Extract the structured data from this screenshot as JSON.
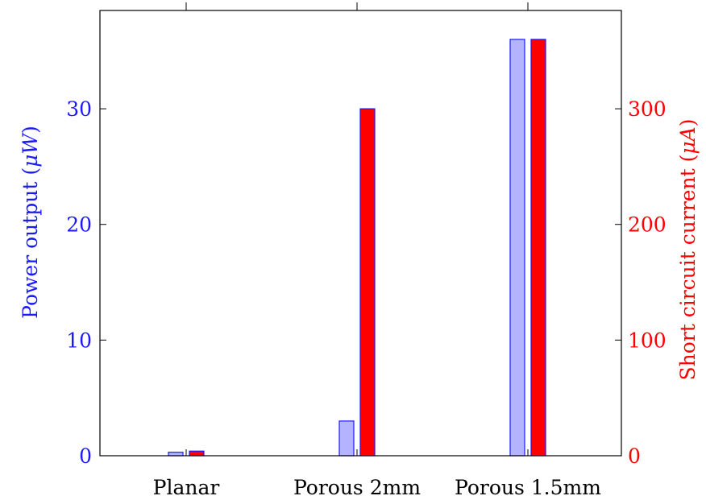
{
  "chart_data": {
    "type": "bar",
    "categories": [
      "Planar",
      "Porous 2mm",
      "Porous 1.5mm"
    ],
    "series": [
      {
        "name": "Power output",
        "axis": "left",
        "values": [
          0.3,
          3,
          36
        ],
        "fill": "#b3b3ff",
        "stroke": "#1a1aff"
      },
      {
        "name": "Short circuit current",
        "axis": "right",
        "values": [
          4,
          300,
          360
        ],
        "fill": "#ff0000",
        "stroke": "#1a1aff"
      }
    ],
    "y_left": {
      "label": "Power output (μW)",
      "label_text": "Power output (",
      "label_unit": "μW",
      "label_close": ")",
      "ticks": [
        "0",
        "10",
        "20",
        "30"
      ],
      "tick_values": [
        0,
        10,
        20,
        30
      ],
      "ylim": [
        0,
        38.5
      ],
      "color": "#1a1aff"
    },
    "y_right": {
      "label": "Short circuit current (μA)",
      "label_text": "Short circuit current (",
      "label_unit": "μA",
      "label_close": ")",
      "ticks": [
        "0",
        "100",
        "200",
        "300"
      ],
      "tick_values": [
        0,
        100,
        200,
        300
      ],
      "ylim": [
        0,
        385
      ],
      "color": "#ff0000"
    },
    "xlabel": "",
    "title": "",
    "grid": false,
    "legend": false
  }
}
